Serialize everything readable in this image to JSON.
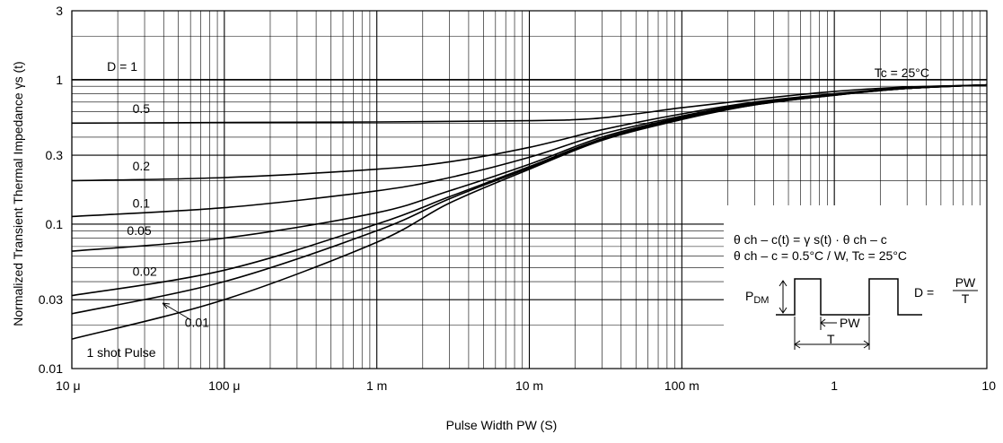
{
  "chart_data": {
    "type": "line",
    "xlabel": "Pulse Width PW (S)",
    "ylabel": "Normalized Transient Thermal Impedance  γs (t)",
    "x_scale": "log",
    "y_scale": "log",
    "xlim": [
      1e-05,
      10
    ],
    "ylim": [
      0.01,
      3
    ],
    "grid": true,
    "x_ticks": [
      {
        "value": 1e-05,
        "label": "10  μ"
      },
      {
        "value": 0.0001,
        "label": "100  μ"
      },
      {
        "value": 0.001,
        "label": "1 m"
      },
      {
        "value": 0.01,
        "label": "10 m"
      },
      {
        "value": 0.1,
        "label": "100 m"
      },
      {
        "value": 1,
        "label": "1"
      },
      {
        "value": 10,
        "label": "10"
      }
    ],
    "y_ticks": [
      {
        "value": 0.01,
        "label": "0.01"
      },
      {
        "value": 0.03,
        "label": "0.03"
      },
      {
        "value": 0.1,
        "label": "0.1"
      },
      {
        "value": 0.3,
        "label": "0.3"
      },
      {
        "value": 1,
        "label": "1"
      },
      {
        "value": 3,
        "label": "3"
      }
    ],
    "series": [
      {
        "name": "D = 1",
        "label_x": 1.7e-05,
        "label_y": 1.15,
        "x": [
          1e-05,
          10
        ],
        "y": [
          1.0,
          1.0
        ]
      },
      {
        "name": "0.5",
        "label_x": 2.5e-05,
        "label_y": 0.59,
        "x": [
          1e-05,
          0.0001,
          0.001,
          0.01,
          0.025,
          0.05,
          0.1,
          0.3,
          1,
          3,
          10
        ],
        "y": [
          0.5,
          0.505,
          0.51,
          0.52,
          0.535,
          0.58,
          0.64,
          0.73,
          0.83,
          0.89,
          0.92
        ]
      },
      {
        "name": "0.2",
        "label_x": 2.5e-05,
        "label_y": 0.235,
        "x": [
          1e-05,
          0.0001,
          0.001,
          0.003,
          0.01,
          0.03,
          0.1,
          0.3,
          1,
          3,
          10
        ],
        "y": [
          0.2,
          0.21,
          0.24,
          0.27,
          0.34,
          0.45,
          0.58,
          0.7,
          0.8,
          0.88,
          0.92
        ]
      },
      {
        "name": "0.1",
        "label_x": 2.5e-05,
        "label_y": 0.13,
        "x": [
          1e-05,
          0.0001,
          0.001,
          0.003,
          0.01,
          0.03,
          0.1,
          0.3,
          1,
          3,
          10
        ],
        "y": [
          0.113,
          0.13,
          0.17,
          0.21,
          0.29,
          0.42,
          0.56,
          0.69,
          0.79,
          0.87,
          0.92
        ]
      },
      {
        "name": "0.05",
        "label_x": 2.3e-05,
        "label_y": 0.084,
        "x": [
          1e-05,
          0.0001,
          0.001,
          0.003,
          0.01,
          0.03,
          0.1,
          0.3,
          1,
          3,
          10
        ],
        "y": [
          0.065,
          0.08,
          0.12,
          0.17,
          0.26,
          0.4,
          0.55,
          0.68,
          0.79,
          0.87,
          0.92
        ]
      },
      {
        "name": "0.02",
        "label_x": 2.5e-05,
        "label_y": 0.044,
        "x": [
          1e-05,
          0.0001,
          0.001,
          0.003,
          0.01,
          0.03,
          0.1,
          0.3,
          1,
          3,
          10
        ],
        "y": [
          0.032,
          0.048,
          0.1,
          0.155,
          0.25,
          0.39,
          0.54,
          0.68,
          0.79,
          0.87,
          0.92
        ]
      },
      {
        "name": "0.01",
        "label_x": 5.5e-05,
        "label_y": 0.0195,
        "x": [
          1e-05,
          0.0001,
          0.001,
          0.003,
          0.01,
          0.03,
          0.1,
          0.3,
          1,
          3,
          10
        ],
        "y": [
          0.024,
          0.04,
          0.09,
          0.15,
          0.245,
          0.385,
          0.54,
          0.67,
          0.78,
          0.87,
          0.92
        ]
      },
      {
        "name": "1 shot Pulse",
        "label_x": 1.25e-05,
        "label_y": 0.012,
        "x": [
          1e-05,
          0.0001,
          0.001,
          0.003,
          0.01,
          0.03,
          0.1,
          0.3,
          1,
          3,
          10
        ],
        "y": [
          0.016,
          0.03,
          0.075,
          0.14,
          0.24,
          0.38,
          0.53,
          0.67,
          0.78,
          0.87,
          0.92
        ]
      }
    ],
    "annotations": {
      "tc_top": "Tc = 25°C",
      "formula_line1": "θ ch – c(t) = γ s(t) · θ ch – c",
      "formula_line2": "θ ch – c = 0.5°C / W,  Tc = 25°C",
      "pdm_main": "P",
      "pdm_sub": "DM",
      "pw": "PW",
      "t": "T",
      "d_prefix": "D =",
      "d_num": "PW",
      "d_den": "T"
    }
  }
}
